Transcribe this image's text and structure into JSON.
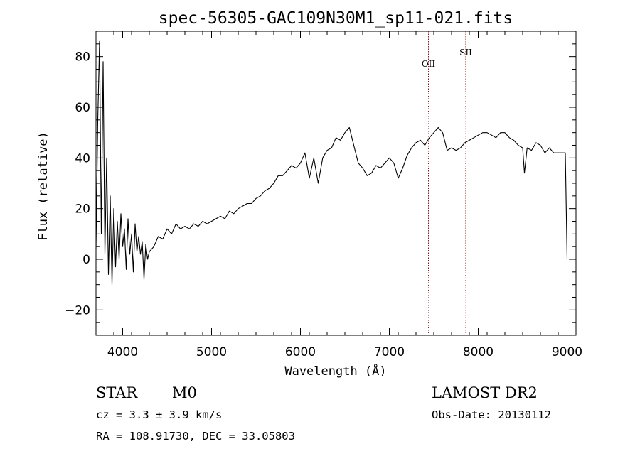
{
  "chart_data": {
    "type": "line",
    "title": "spec-56305-GAC109N30M1_sp11-021.fits",
    "xlabel": "Wavelength (Å)",
    "ylabel": "Flux (relative)",
    "xlim": [
      3700,
      9100
    ],
    "ylim": [
      -30,
      90
    ],
    "xticks": [
      4000,
      5000,
      6000,
      7000,
      8000,
      9000
    ],
    "xtick_labels": [
      "4000",
      "5000",
      "6000",
      "7000",
      "8000",
      "9000"
    ],
    "yticks": [
      -20,
      0,
      20,
      40,
      60,
      80
    ],
    "ytick_labels": [
      "−20",
      "0",
      "20",
      "40",
      "60",
      "80"
    ],
    "grid": false,
    "series": [
      {
        "x": [
          3700,
          3720,
          3740,
          3760,
          3780,
          3800,
          3820,
          3840,
          3860,
          3880,
          3900,
          3920,
          3940,
          3960,
          3980,
          4000,
          4020,
          4040,
          4060,
          4080,
          4100,
          4120,
          4140,
          4160,
          4180,
          4200,
          4220,
          4240,
          4260,
          4280,
          4300,
          4350,
          4400,
          4450,
          4500,
          4550,
          4600,
          4650,
          4700,
          4750,
          4800,
          4850,
          4900,
          4950,
          5000,
          5050,
          5100,
          5150,
          5200,
          5250,
          5300,
          5350,
          5400,
          5450,
          5500,
          5550,
          5600,
          5650,
          5700,
          5750,
          5800,
          5850,
          5900,
          5950,
          6000,
          6050,
          6100,
          6150,
          6200,
          6250,
          6300,
          6350,
          6400,
          6450,
          6500,
          6550,
          6600,
          6650,
          6700,
          6750,
          6800,
          6850,
          6900,
          6950,
          7000,
          7050,
          7100,
          7150,
          7200,
          7250,
          7300,
          7350,
          7400,
          7450,
          7500,
          7550,
          7600,
          7650,
          7700,
          7750,
          7800,
          7850,
          7900,
          7950,
          8000,
          8050,
          8100,
          8150,
          8200,
          8250,
          8300,
          8350,
          8400,
          8450,
          8500,
          8520,
          8550,
          8600,
          8650,
          8700,
          8750,
          8800,
          8850,
          8900,
          8950,
          8980,
          8990,
          9000
        ],
        "y": [
          4,
          55,
          86,
          10,
          78,
          2,
          40,
          -6,
          25,
          -10,
          20,
          -3,
          15,
          0,
          18,
          5,
          12,
          -4,
          16,
          2,
          10,
          -5,
          14,
          3,
          9,
          2,
          7,
          -8,
          6,
          0,
          3,
          5,
          9,
          8,
          12,
          10,
          14,
          12,
          13,
          12,
          14,
          13,
          15,
          14,
          15,
          16,
          17,
          16,
          19,
          18,
          20,
          21,
          22,
          22,
          24,
          25,
          27,
          28,
          30,
          33,
          33,
          35,
          37,
          36,
          38,
          42,
          32,
          40,
          30,
          40,
          43,
          44,
          48,
          47,
          50,
          52,
          45,
          38,
          36,
          33,
          34,
          37,
          36,
          38,
          40,
          38,
          32,
          36,
          41,
          44,
          46,
          47,
          45,
          48,
          50,
          52,
          50,
          43,
          44,
          43,
          44,
          46,
          47,
          48,
          49,
          50,
          50,
          49,
          48,
          50,
          50,
          48,
          47,
          45,
          44,
          34,
          44,
          43,
          46,
          45,
          42,
          44,
          42,
          42,
          42,
          42,
          20,
          0
        ]
      }
    ],
    "reference_lines": [
      {
        "x": 7440,
        "label": "OII"
      },
      {
        "x": 7860,
        "label": "SII"
      }
    ]
  },
  "info": {
    "class_label": "STAR",
    "subclass": "M0",
    "cz_text": "cz = 3.3 ± 3.9 km/s",
    "coords_text": "RA = 108.91730, DEC =  33.05803",
    "survey": "LAMOST DR2",
    "obs_date": "Obs-Date: 20130112"
  }
}
